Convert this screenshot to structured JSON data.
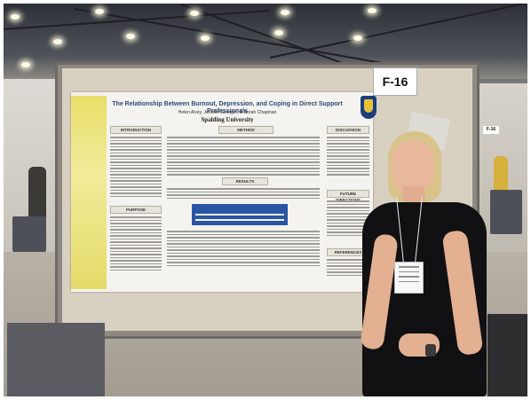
{
  "scene": {
    "description_tag": "poster-session-photo",
    "colors": {
      "poster_background": "#f4f3ef",
      "poster_accent": "#2b4a7a",
      "yellow_band": "#e8df6a",
      "dress": "#111113"
    }
  },
  "poster": {
    "title": "The Relationship Between Burnout, Depression, and Coping in Direct Support Professionals",
    "authors": "Helen Alvey, Jennifer Schager, & Norah Chapman",
    "university": "Spalding University",
    "sections": {
      "introduction": "INTRODUCTION",
      "method": "METHOD",
      "results": "RESULTS",
      "purpose": "PURPOSE",
      "discussion": "DISCUSSION",
      "future_directions": "FUTURE DIRECTIONS",
      "references": "REFERENCES"
    }
  },
  "signs": {
    "booth_number": "F-16",
    "adjacent_booth": "F-16"
  }
}
